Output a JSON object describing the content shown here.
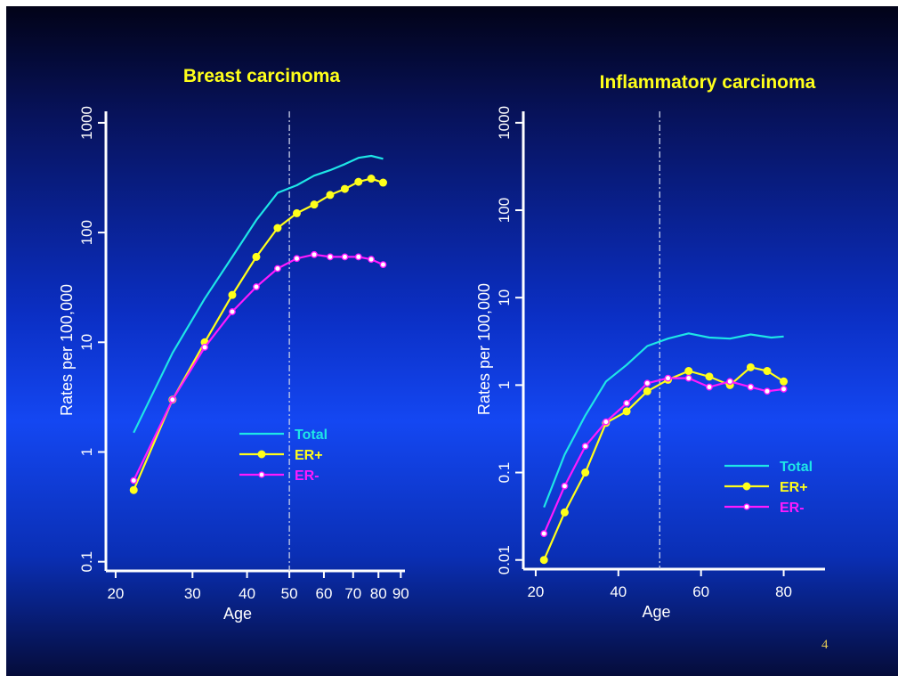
{
  "colors": {
    "total": "#1ee6e6",
    "er_pos": "#ffff1a",
    "er_neg": "#ff1aff",
    "axis": "#ffffff"
  },
  "page_number": "4",
  "chart_data": [
    {
      "type": "line",
      "title": "Breast carcinoma",
      "xlabel": "Age",
      "ylabel": "Rates per 100,000",
      "y_scale": "log",
      "x_scale": "log",
      "ylim": [
        0.1,
        1000
      ],
      "xlim": [
        19,
        92
      ],
      "x_ticks": [
        "20",
        "30",
        "40",
        "50",
        "60",
        "70",
        "80",
        "90"
      ],
      "x_tick_values": [
        20,
        30,
        40,
        50,
        60,
        70,
        80,
        90
      ],
      "y_ticks": [
        "0.1",
        "1",
        "10",
        "100",
        "1000"
      ],
      "y_tick_values": [
        0.1,
        1,
        10,
        100,
        1000
      ],
      "reference_line_x": 50,
      "legend_position": "lower-right",
      "series": [
        {
          "name": "Total",
          "markers": false,
          "x": [
            22,
            27,
            32,
            37,
            42,
            47,
            52,
            57,
            62,
            67,
            72,
            77,
            82
          ],
          "y": [
            1.5,
            8,
            25,
            60,
            130,
            230,
            270,
            330,
            370,
            420,
            480,
            500,
            470
          ]
        },
        {
          "name": "ER+",
          "markers": true,
          "x": [
            22,
            27,
            32,
            37,
            42,
            47,
            52,
            57,
            62,
            67,
            72,
            77,
            82
          ],
          "y": [
            0.45,
            3,
            10,
            27,
            60,
            110,
            150,
            180,
            220,
            250,
            290,
            310,
            285
          ]
        },
        {
          "name": "ER-",
          "markers": true,
          "x": [
            22,
            27,
            32,
            37,
            42,
            47,
            52,
            57,
            62,
            67,
            72,
            77,
            82
          ],
          "y": [
            0.55,
            3,
            9,
            19,
            32,
            47,
            58,
            63,
            60,
            60,
            60,
            57,
            51
          ]
        }
      ]
    },
    {
      "type": "line",
      "title": "Inflammatory carcinoma",
      "xlabel": "Age",
      "ylabel": "Rates per 100,000",
      "y_scale": "log",
      "x_scale": "linear",
      "ylim": [
        0.01,
        1000
      ],
      "xlim": [
        17,
        90
      ],
      "x_ticks": [
        "20",
        "40",
        "60",
        "80"
      ],
      "x_tick_values": [
        20,
        40,
        60,
        80
      ],
      "y_ticks": [
        "0.01",
        "0.1",
        "1",
        "10",
        "100",
        "1000"
      ],
      "y_tick_values": [
        0.01,
        0.1,
        1,
        10,
        100,
        1000
      ],
      "reference_line_x": 50,
      "legend_position": "lower-right",
      "series": [
        {
          "name": "Total",
          "markers": false,
          "x": [
            22,
            27,
            32,
            37,
            42,
            47,
            52,
            57,
            62,
            67,
            72,
            77,
            80
          ],
          "y": [
            0.04,
            0.16,
            0.45,
            1.1,
            1.7,
            2.8,
            3.4,
            3.9,
            3.5,
            3.4,
            3.8,
            3.5,
            3.6
          ]
        },
        {
          "name": "ER+",
          "markers": true,
          "x": [
            22,
            27,
            32,
            37,
            42,
            47,
            52,
            57,
            62,
            67,
            72,
            76,
            80
          ],
          "y": [
            0.01,
            0.035,
            0.1,
            0.37,
            0.5,
            0.85,
            1.15,
            1.45,
            1.25,
            1.0,
            1.6,
            1.45,
            1.1
          ]
        },
        {
          "name": "ER-",
          "markers": true,
          "x": [
            22,
            27,
            32,
            37,
            42,
            47,
            52,
            57,
            62,
            67,
            72,
            76,
            80
          ],
          "y": [
            0.02,
            0.07,
            0.2,
            0.38,
            0.62,
            1.05,
            1.2,
            1.2,
            0.95,
            1.1,
            0.95,
            0.85,
            0.9
          ]
        }
      ]
    }
  ]
}
